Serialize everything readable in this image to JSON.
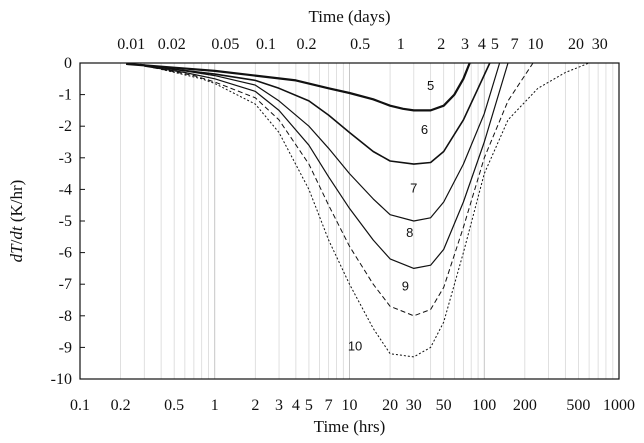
{
  "chart_data": {
    "type": "line",
    "title": "",
    "top_xlabel": "Time (days)",
    "xlabel": "Time (hrs)",
    "ylabel_parts": [
      "dT",
      "/",
      "dt",
      " (K/hr)"
    ],
    "xscale": "log",
    "xlim": [
      0.1,
      1000
    ],
    "ylim": [
      -10,
      0
    ],
    "grid": "vertical minor log lines",
    "legend": "inline curve labels",
    "x_ticks": [
      {
        "v": 0.1,
        "label": "0.1"
      },
      {
        "v": 0.2,
        "label": "0.2"
      },
      {
        "v": 0.5,
        "label": "0.5"
      },
      {
        "v": 1,
        "label": "1"
      },
      {
        "v": 2,
        "label": "2"
      },
      {
        "v": 3,
        "label": "3"
      },
      {
        "v": 4,
        "label": "4"
      },
      {
        "v": 5,
        "label": "5"
      },
      {
        "v": 7,
        "label": "7"
      },
      {
        "v": 10,
        "label": "10"
      },
      {
        "v": 20,
        "label": "20"
      },
      {
        "v": 30,
        "label": "30"
      },
      {
        "v": 50,
        "label": "50"
      },
      {
        "v": 100,
        "label": "100"
      },
      {
        "v": 200,
        "label": "200"
      },
      {
        "v": 500,
        "label": "500"
      },
      {
        "v": 1000,
        "label": "1000"
      }
    ],
    "top_ticks": [
      {
        "v": 0.01,
        "label": "0.01"
      },
      {
        "v": 0.02,
        "label": "0.02"
      },
      {
        "v": 0.05,
        "label": "0.05"
      },
      {
        "v": 0.1,
        "label": "0.1"
      },
      {
        "v": 0.2,
        "label": "0.2"
      },
      {
        "v": 0.5,
        "label": "0.5"
      },
      {
        "v": 1,
        "label": "1"
      },
      {
        "v": 2,
        "label": "2"
      },
      {
        "v": 3,
        "label": "3"
      },
      {
        "v": 4,
        "label": "4"
      },
      {
        "v": 5,
        "label": "5"
      },
      {
        "v": 7,
        "label": "7"
      },
      {
        "v": 10,
        "label": "10"
      },
      {
        "v": 20,
        "label": "20"
      },
      {
        "v": 30,
        "label": "30"
      }
    ],
    "y_ticks": [
      0,
      -1,
      -2,
      -3,
      -4,
      -5,
      -6,
      -7,
      -8,
      -9,
      -10
    ],
    "series": [
      {
        "label": "5",
        "color": "#111111",
        "width": 2.2,
        "dash": "",
        "points": [
          [
            0.22,
            -0.03
          ],
          [
            0.5,
            -0.15
          ],
          [
            1,
            -0.25
          ],
          [
            2,
            -0.4
          ],
          [
            4,
            -0.55
          ],
          [
            7,
            -0.8
          ],
          [
            10,
            -0.95
          ],
          [
            15,
            -1.15
          ],
          [
            20,
            -1.35
          ],
          [
            25,
            -1.45
          ],
          [
            30,
            -1.5
          ],
          [
            40,
            -1.5
          ],
          [
            50,
            -1.35
          ],
          [
            60,
            -1.0
          ],
          [
            70,
            -0.5
          ],
          [
            78,
            0
          ]
        ]
      },
      {
        "label": "6",
        "color": "#111111",
        "width": 1.6,
        "dash": "",
        "points": [
          [
            0.28,
            -0.05
          ],
          [
            0.5,
            -0.2
          ],
          [
            1,
            -0.35
          ],
          [
            2,
            -0.55
          ],
          [
            3,
            -0.8
          ],
          [
            5,
            -1.2
          ],
          [
            7,
            -1.65
          ],
          [
            10,
            -2.2
          ],
          [
            15,
            -2.8
          ],
          [
            20,
            -3.1
          ],
          [
            30,
            -3.2
          ],
          [
            40,
            -3.15
          ],
          [
            50,
            -2.8
          ],
          [
            70,
            -1.8
          ],
          [
            90,
            -0.8
          ],
          [
            110,
            0
          ]
        ]
      },
      {
        "label": "7",
        "color": "#111111",
        "width": 1.2,
        "dash": "",
        "points": [
          [
            0.3,
            -0.08
          ],
          [
            0.6,
            -0.25
          ],
          [
            1,
            -0.4
          ],
          [
            2,
            -0.7
          ],
          [
            3,
            -1.2
          ],
          [
            5,
            -2.0
          ],
          [
            7,
            -2.7
          ],
          [
            10,
            -3.5
          ],
          [
            15,
            -4.3
          ],
          [
            20,
            -4.8
          ],
          [
            30,
            -5.0
          ],
          [
            40,
            -4.9
          ],
          [
            50,
            -4.4
          ],
          [
            70,
            -3.2
          ],
          [
            100,
            -1.6
          ],
          [
            130,
            0
          ]
        ]
      },
      {
        "label": "8",
        "color": "#111111",
        "width": 1.2,
        "dash": "",
        "points": [
          [
            0.3,
            -0.1
          ],
          [
            0.6,
            -0.3
          ],
          [
            1,
            -0.5
          ],
          [
            2,
            -0.9
          ],
          [
            3,
            -1.5
          ],
          [
            5,
            -2.6
          ],
          [
            7,
            -3.6
          ],
          [
            10,
            -4.6
          ],
          [
            15,
            -5.6
          ],
          [
            20,
            -6.2
          ],
          [
            30,
            -6.5
          ],
          [
            40,
            -6.4
          ],
          [
            50,
            -5.9
          ],
          [
            70,
            -4.4
          ],
          [
            100,
            -2.5
          ],
          [
            150,
            0
          ]
        ]
      },
      {
        "label": "9",
        "color": "#111111",
        "width": 1.0,
        "dash": "5,3",
        "points": [
          [
            0.35,
            -0.15
          ],
          [
            0.7,
            -0.4
          ],
          [
            1,
            -0.6
          ],
          [
            2,
            -1.1
          ],
          [
            3,
            -1.8
          ],
          [
            5,
            -3.2
          ],
          [
            7,
            -4.5
          ],
          [
            10,
            -5.8
          ],
          [
            15,
            -7.0
          ],
          [
            20,
            -7.7
          ],
          [
            30,
            -8.0
          ],
          [
            40,
            -7.8
          ],
          [
            50,
            -7.1
          ],
          [
            70,
            -5.2
          ],
          [
            100,
            -3.0
          ],
          [
            150,
            -1.2
          ],
          [
            230,
            0
          ]
        ]
      },
      {
        "label": "10",
        "color": "#111111",
        "width": 1.0,
        "dash": "2,2",
        "points": [
          [
            0.4,
            -0.2
          ],
          [
            0.8,
            -0.5
          ],
          [
            1,
            -0.65
          ],
          [
            2,
            -1.3
          ],
          [
            3,
            -2.2
          ],
          [
            5,
            -4.0
          ],
          [
            7,
            -5.6
          ],
          [
            10,
            -7.0
          ],
          [
            15,
            -8.4
          ],
          [
            20,
            -9.2
          ],
          [
            30,
            -9.3
          ],
          [
            40,
            -9.0
          ],
          [
            50,
            -8.2
          ],
          [
            70,
            -6.0
          ],
          [
            100,
            -3.5
          ],
          [
            150,
            -1.8
          ],
          [
            250,
            -0.8
          ],
          [
            400,
            -0.3
          ],
          [
            600,
            0
          ]
        ]
      }
    ],
    "annotations": [
      {
        "text": "5",
        "x": 40,
        "y": -0.85
      },
      {
        "text": "6",
        "x": 36,
        "y": -2.25
      },
      {
        "text": "7",
        "x": 30,
        "y": -4.1
      },
      {
        "text": "8",
        "x": 28,
        "y": -5.5
      },
      {
        "text": "9",
        "x": 26,
        "y": -7.2
      },
      {
        "text": "10",
        "x": 11,
        "y": -9.1
      }
    ]
  }
}
